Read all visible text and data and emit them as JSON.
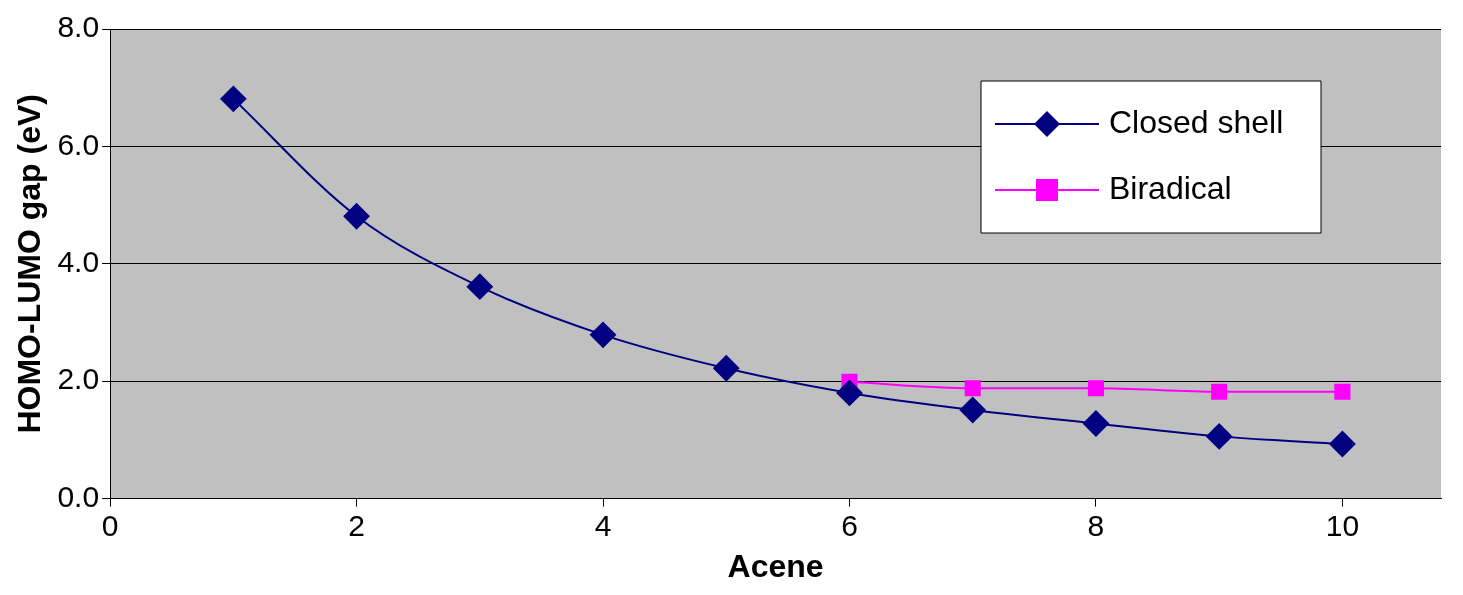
{
  "chart_data": {
    "type": "line",
    "xlabel": "Acene",
    "ylabel": "HOMO-LUMO gap (eV)",
    "xlim": [
      0,
      10.8
    ],
    "xticks": [
      0,
      2,
      4,
      6,
      8,
      10
    ],
    "ylim": [
      0,
      8
    ],
    "yticks": [
      {
        "value": 0,
        "label": "0.0"
      },
      {
        "value": 2,
        "label": "2.0"
      },
      {
        "value": 4,
        "label": "4.0"
      },
      {
        "value": 6,
        "label": "6.0"
      },
      {
        "value": 8,
        "label": "8.0"
      }
    ],
    "grid": "y",
    "legend": "top right",
    "series": [
      {
        "name": "Closed shell",
        "color": "#000080",
        "marker": "diamond",
        "x": [
          1,
          2,
          3,
          4,
          5,
          6,
          7,
          8,
          9,
          10
        ],
        "values": [
          6.81,
          4.81,
          3.61,
          2.79,
          2.22,
          1.8,
          1.51,
          1.28,
          1.06,
          0.93
        ]
      },
      {
        "name": "Biradical",
        "color": "#ff00ff",
        "marker": "square",
        "x": [
          6,
          7,
          8,
          9,
          10
        ],
        "values": [
          1.99,
          1.88,
          1.88,
          1.82,
          1.82
        ]
      }
    ]
  }
}
